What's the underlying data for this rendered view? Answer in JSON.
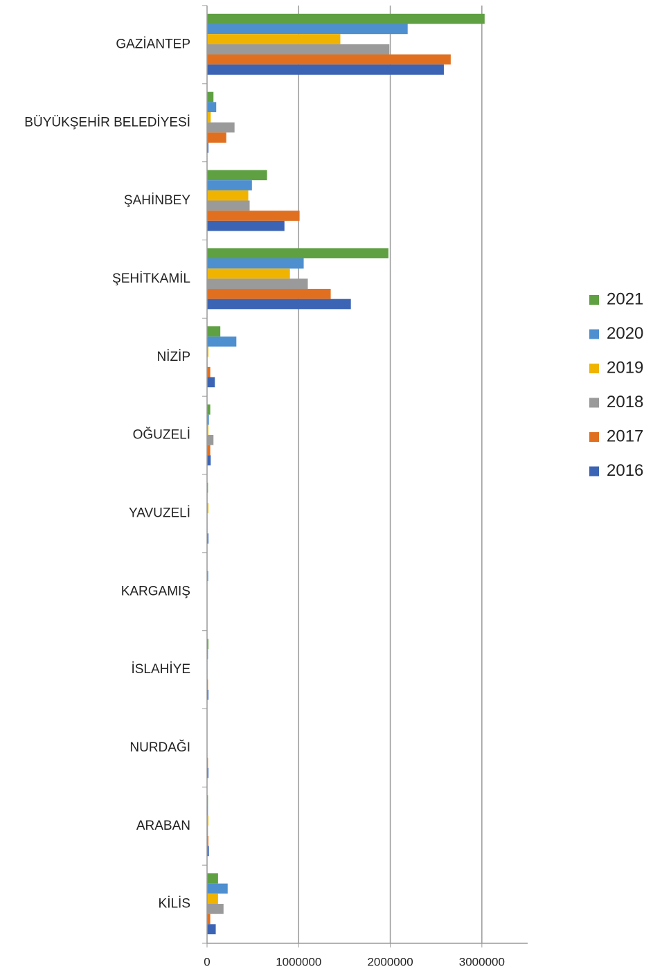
{
  "chart_data": {
    "type": "hbar",
    "categories": [
      "GAZİANTEP",
      "BÜYÜKŞEHİR BELEDİYESİ",
      "ŞAHİNBEY",
      "ŞEHİTKAMİL",
      "NİZİP",
      "OĞUZELİ",
      "YAVUZELİ",
      "KARGAMIŞ",
      "İSLAHİYE",
      "NURDAĞI",
      "ARABAN",
      "KİLİS"
    ],
    "series": [
      {
        "name": "2021",
        "color": "#5fa043",
        "values": [
          3030000,
          70000,
          655000,
          1980000,
          145000,
          35000,
          10000,
          3000,
          15000,
          2000,
          10000,
          120000
        ]
      },
      {
        "name": "2020",
        "color": "#4e8fcf",
        "values": [
          2190000,
          100000,
          490000,
          1055000,
          320000,
          20000,
          5000,
          12000,
          10000,
          2000,
          10000,
          225000
        ]
      },
      {
        "name": "2019",
        "color": "#f0b400",
        "values": [
          1455000,
          40000,
          450000,
          905000,
          15000,
          15000,
          15000,
          3000,
          5000,
          2000,
          15000,
          120000
        ]
      },
      {
        "name": "2018",
        "color": "#9a9a9a",
        "values": [
          1990000,
          300000,
          465000,
          1100000,
          5000,
          70000,
          5000,
          2000,
          5000,
          3000,
          10000,
          180000
        ]
      },
      {
        "name": "2017",
        "color": "#e07020",
        "values": [
          2660000,
          210000,
          1010000,
          1350000,
          35000,
          35000,
          5000,
          2000,
          10000,
          10000,
          15000,
          35000
        ]
      },
      {
        "name": "2016",
        "color": "#3c64b4",
        "values": [
          2585000,
          15000,
          845000,
          1570000,
          85000,
          40000,
          15000,
          3000,
          15000,
          15000,
          20000,
          95000
        ]
      }
    ],
    "xlim": [
      0,
      3500000
    ],
    "xticks": [
      0,
      1000000,
      2000000,
      3000000
    ],
    "grid": true,
    "legend": "right"
  }
}
